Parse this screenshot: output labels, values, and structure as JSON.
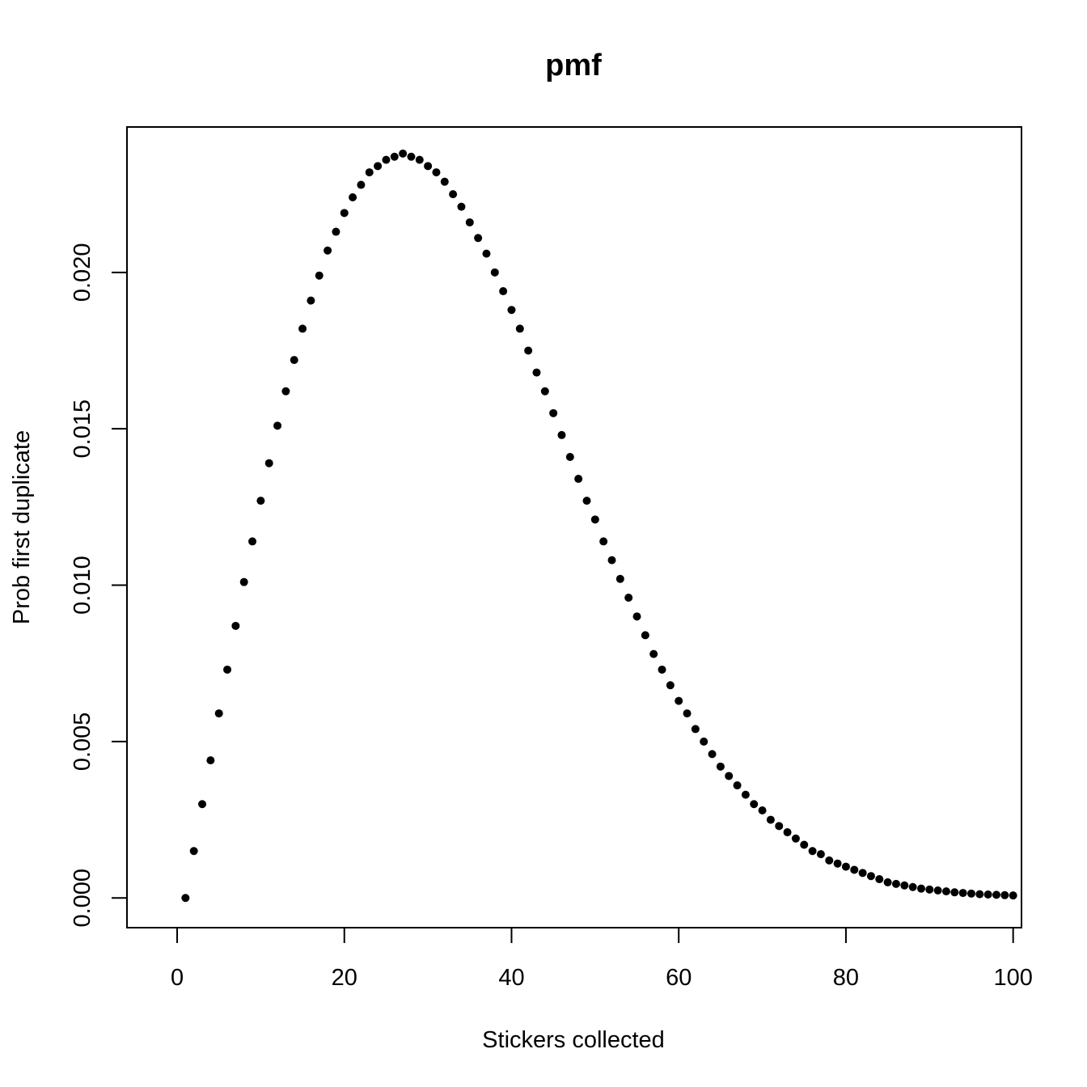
{
  "chart_data": {
    "type": "scatter",
    "title": "pmf",
    "xlabel": "Stickers collected",
    "ylabel": "Prob first duplicate",
    "xlim": [
      -6,
      101
    ],
    "ylim": [
      -0.00095,
      0.02465
    ],
    "xticks": [
      0,
      20,
      40,
      60,
      80,
      100
    ],
    "xtick_labels": [
      "0",
      "20",
      "40",
      "60",
      "80",
      "100"
    ],
    "yticks": [
      0,
      0.005,
      0.01,
      0.015,
      0.02
    ],
    "ytick_labels": [
      "0.000",
      "0.005",
      "0.010",
      "0.015",
      "0.020"
    ],
    "grid": false,
    "point_color": "#000000",
    "series": [
      {
        "x": [
          1,
          2,
          3,
          4,
          5,
          6,
          7,
          8,
          9,
          10,
          11,
          12,
          13,
          14,
          15,
          16,
          17,
          18,
          19,
          20,
          21,
          22,
          23,
          24,
          25,
          26,
          27,
          28,
          29,
          30,
          31,
          32,
          33,
          34,
          35,
          36,
          37,
          38,
          39,
          40,
          41,
          42,
          43,
          44,
          45,
          46,
          47,
          48,
          49,
          50,
          51,
          52,
          53,
          54,
          55,
          56,
          57,
          58,
          59,
          60,
          61,
          62,
          63,
          64,
          65,
          66,
          67,
          68,
          69,
          70,
          71,
          72,
          73,
          74,
          75,
          76,
          77,
          78,
          79,
          80,
          81,
          82,
          83,
          84,
          85,
          86,
          87,
          88,
          89,
          90,
          91,
          92,
          93,
          94,
          95,
          96,
          97,
          98,
          99,
          100
        ],
        "y": [
          0.0,
          0.0015,
          0.003,
          0.0044,
          0.0059,
          0.0073,
          0.0087,
          0.0101,
          0.0114,
          0.0127,
          0.0139,
          0.0151,
          0.0162,
          0.0172,
          0.0182,
          0.0191,
          0.0199,
          0.0207,
          0.0213,
          0.0219,
          0.0224,
          0.0228,
          0.0232,
          0.0234,
          0.0236,
          0.0237,
          0.0238,
          0.0237,
          0.0236,
          0.0234,
          0.0232,
          0.0229,
          0.0225,
          0.0221,
          0.0216,
          0.0211,
          0.0206,
          0.02,
          0.0194,
          0.0188,
          0.0182,
          0.0175,
          0.0168,
          0.0162,
          0.0155,
          0.0148,
          0.0141,
          0.0134,
          0.0127,
          0.0121,
          0.0114,
          0.0108,
          0.0102,
          0.0096,
          0.009,
          0.0084,
          0.0078,
          0.0073,
          0.0068,
          0.0063,
          0.0059,
          0.0054,
          0.005,
          0.0046,
          0.0042,
          0.0039,
          0.0036,
          0.0033,
          0.003,
          0.0028,
          0.0025,
          0.0023,
          0.0021,
          0.0019,
          0.0017,
          0.0015,
          0.0014,
          0.0012,
          0.0011,
          0.001,
          0.0009,
          0.0008,
          0.0007,
          0.0006,
          0.0005,
          0.00045,
          0.0004,
          0.00035,
          0.0003,
          0.00027,
          0.00024,
          0.00021,
          0.00018,
          0.00016,
          0.00014,
          0.00012,
          0.00011,
          0.0001,
          9e-05,
          8e-05
        ]
      }
    ]
  }
}
